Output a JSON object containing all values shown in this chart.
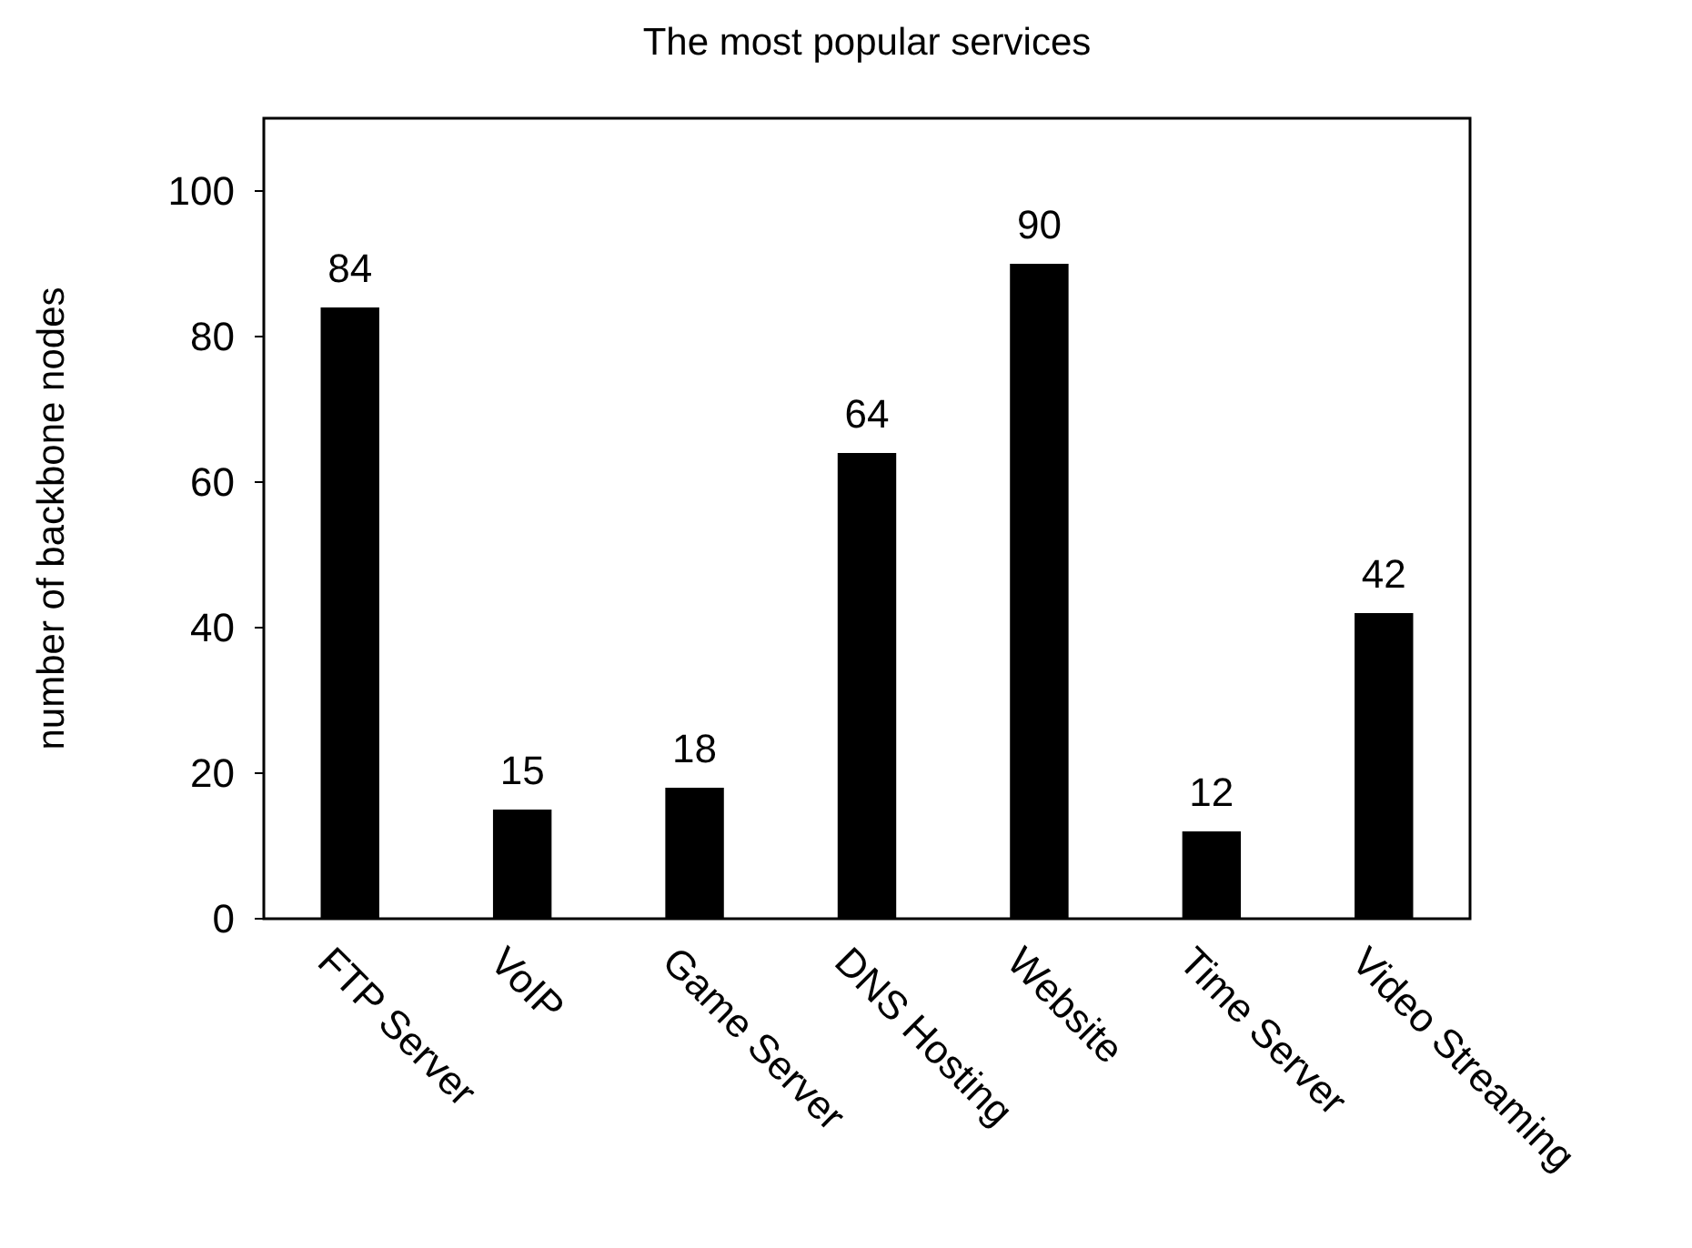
{
  "chart_data": {
    "type": "bar",
    "title": "The most popular services",
    "ylabel": "number of backbone nodes",
    "categories": [
      "FTP Server",
      "VoIP",
      "Game Server",
      "DNS Hosting",
      "Website",
      "Time Server",
      "Video Streaming"
    ],
    "values": [
      84,
      15,
      18,
      64,
      90,
      12,
      42
    ],
    "color": "#000000",
    "data_labels": true,
    "ylim": [
      0,
      110
    ],
    "yticks": [
      0,
      20,
      40,
      60,
      80,
      100
    ],
    "grid": false
  }
}
